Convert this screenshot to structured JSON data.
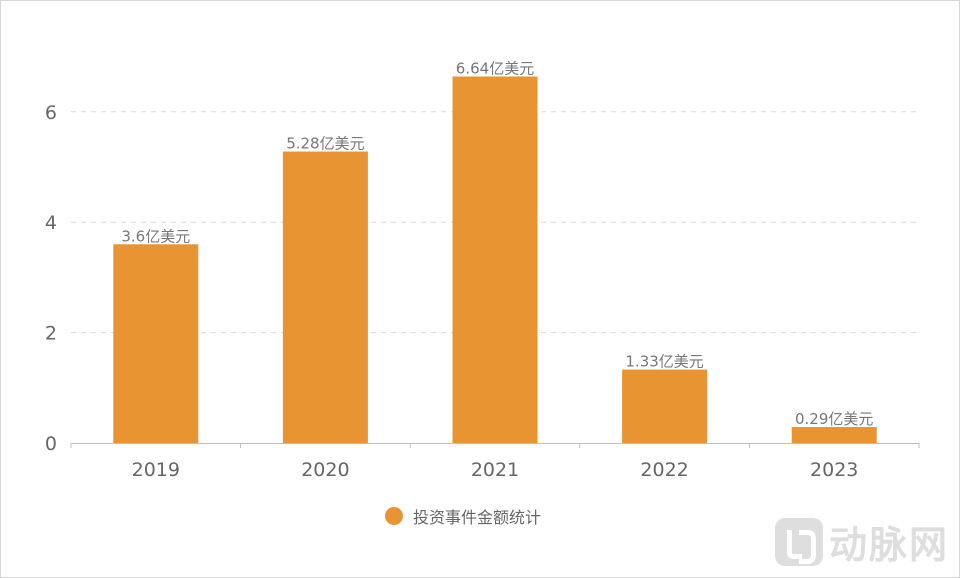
{
  "chart_data": {
    "type": "bar",
    "categories": [
      "2019",
      "2020",
      "2021",
      "2022",
      "2023"
    ],
    "series": [
      {
        "name": "投资事件金额统计",
        "values": [
          3.6,
          5.28,
          6.64,
          1.33,
          0.29
        ],
        "labels": [
          "3.6亿美元",
          "5.28亿美元",
          "6.64亿美元",
          "1.33亿美元",
          "0.29亿美元"
        ]
      }
    ],
    "yticks": [
      "0",
      "2",
      "4",
      "6"
    ],
    "ylim": [
      0,
      7.2
    ],
    "grid": true,
    "legend_position": "bottom-center",
    "bar_color": "#E99433"
  },
  "legend": {
    "label": "投资事件金额统计",
    "color": "#E99433"
  },
  "watermark": {
    "text": "动脉网"
  }
}
